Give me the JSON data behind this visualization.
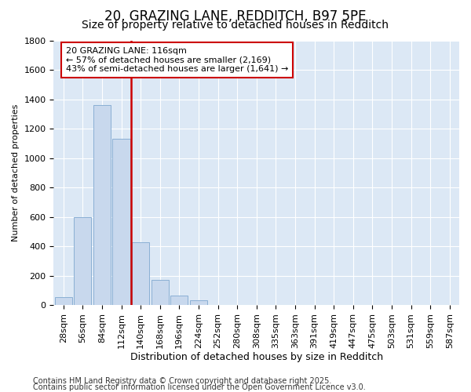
{
  "title1": "20, GRAZING LANE, REDDITCH, B97 5PE",
  "title2": "Size of property relative to detached houses in Redditch",
  "xlabel": "Distribution of detached houses by size in Redditch",
  "ylabel": "Number of detached properties",
  "categories": [
    "28sqm",
    "56sqm",
    "84sqm",
    "112sqm",
    "140sqm",
    "168sqm",
    "196sqm",
    "224sqm",
    "252sqm",
    "280sqm",
    "308sqm",
    "335sqm",
    "363sqm",
    "391sqm",
    "419sqm",
    "447sqm",
    "475sqm",
    "503sqm",
    "531sqm",
    "559sqm",
    "587sqm"
  ],
  "values": [
    55,
    600,
    1360,
    1130,
    425,
    170,
    65,
    35,
    0,
    0,
    0,
    0,
    0,
    0,
    0,
    0,
    0,
    0,
    0,
    0,
    0
  ],
  "bar_color": "#c8d8ed",
  "bar_edge_color": "#8aafd4",
  "vline_color": "#cc0000",
  "vline_pos": 3.5,
  "annotation_text": "20 GRAZING LANE: 116sqm\n← 57% of detached houses are smaller (2,169)\n43% of semi-detached houses are larger (1,641) →",
  "annotation_box_edgecolor": "#cc0000",
  "ylim": [
    0,
    1800
  ],
  "yticks": [
    0,
    200,
    400,
    600,
    800,
    1000,
    1200,
    1400,
    1600,
    1800
  ],
  "fig_bg": "#ffffff",
  "plot_bg": "#dce8f5",
  "grid_color": "#ffffff",
  "footer1": "Contains HM Land Registry data © Crown copyright and database right 2025.",
  "footer2": "Contains public sector information licensed under the Open Government Licence v3.0.",
  "title1_fontsize": 12,
  "title2_fontsize": 10,
  "ylabel_fontsize": 8,
  "xlabel_fontsize": 9,
  "tick_fontsize": 8,
  "annot_fontsize": 8,
  "footer_fontsize": 7
}
